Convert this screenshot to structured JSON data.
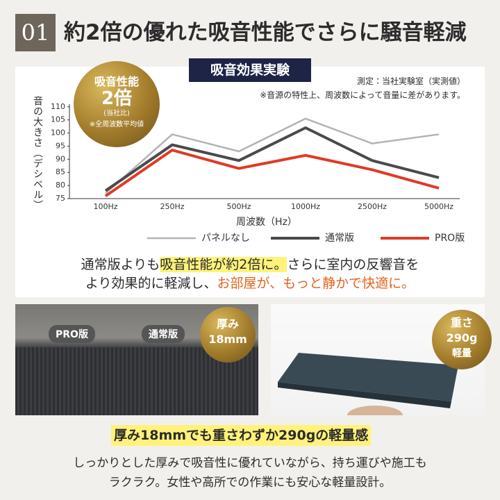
{
  "header": {
    "number": "01",
    "title": "約2倍の優れた吸音性能でさらに騒音軽減"
  },
  "badge": {
    "line1": "吸音性能",
    "line2": "2倍",
    "line3": "(当社比)",
    "line4": "※全周波数平均値"
  },
  "notes": [
    "測定：当社実験室（実測値）",
    "※音源の特性上、周波数によって音量に差があります。"
  ],
  "chart_data": {
    "type": "line",
    "title": "吸音効果実験",
    "y_label": "音の大きさ（デシベル）",
    "x_label": "周波数（Hz）",
    "categories": [
      "100Hz",
      "250Hz",
      "500Hz",
      "1000Hz",
      "2500Hz",
      "5000Hz"
    ],
    "ylim": [
      75,
      111
    ],
    "yticks": [
      75,
      80,
      85,
      90,
      95,
      100,
      105,
      110
    ],
    "series": [
      {
        "name": "パネルなし",
        "color": "#b3b3b3",
        "values": [
          77,
          99.5,
          93,
          105.5,
          96,
          99.5
        ]
      },
      {
        "name": "通常版",
        "color": "#4a4a4c",
        "values": [
          78,
          95.5,
          89.5,
          102,
          89.5,
          83
        ]
      },
      {
        "name": "PRO版",
        "color": "#e03a26",
        "values": [
          76,
          93.5,
          86.5,
          91.5,
          86,
          79
        ]
      }
    ]
  },
  "description": {
    "p1": "通常版よりも",
    "p2": "吸音性能が約2倍に。",
    "p3": "さらに室内の反響音を",
    "p4": "より効果的に軽減し、",
    "p5": "お部屋が、もっと静かで快適に。"
  },
  "photos": {
    "tag_pro": "PRO版",
    "tag_std": "通常版",
    "thick_label": "厚み",
    "thick_value": "18mm",
    "weight_label": "重さ",
    "weight_value": "290g",
    "weight_note": "軽量"
  },
  "footer": {
    "headline": "厚み18mmでも重さわずか290gの軽量感",
    "lines": [
      "しっかりとした厚みで吸音性に優れていながら、持ち運びや施工も",
      "ラクラク。女性や高所での作業にも安心な軽量設計。"
    ]
  }
}
